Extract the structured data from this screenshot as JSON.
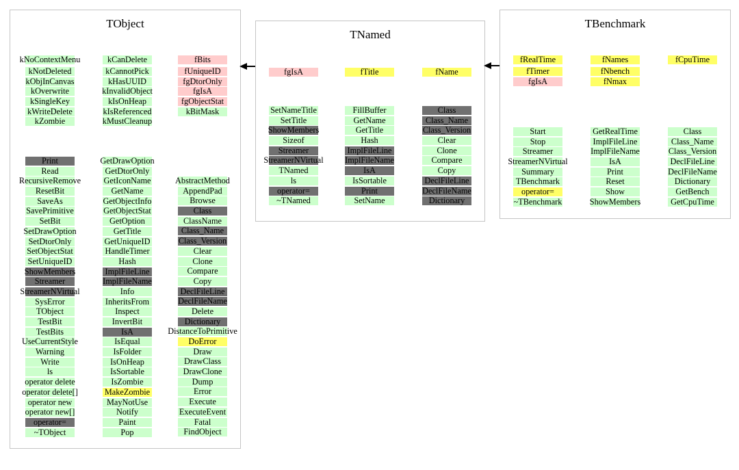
{
  "palette": {
    "green": "#ccffcc",
    "gray": "#707070",
    "yellow": "#ffff66",
    "pink": "#ffcccc",
    "border": "#c4c4c4",
    "arrow": "#000000"
  },
  "relations": [
    {
      "from": "TNamed",
      "to": "TObject",
      "type": "inherits"
    },
    {
      "from": "TBenchmark",
      "to": "TNamed",
      "type": "inherits"
    }
  ],
  "classes": [
    {
      "name": "TObject",
      "member_columns": [
        [
          {
            "t": "kNoContextMenu",
            "c": "green"
          },
          {
            "t": "kNotDeleted",
            "c": "green"
          },
          {
            "t": "kObjInCanvas",
            "c": "green"
          },
          {
            "t": "kOverwrite",
            "c": "green"
          },
          {
            "t": "kSingleKey",
            "c": "green"
          },
          {
            "t": "kWriteDelete",
            "c": "green"
          },
          {
            "t": "kZombie",
            "c": "green"
          }
        ],
        [
          {
            "t": "kCanDelete",
            "c": "green"
          },
          {
            "t": "kCannotPick",
            "c": "green"
          },
          {
            "t": "kHasUUID",
            "c": "green"
          },
          {
            "t": "kInvalidObject",
            "c": "green"
          },
          {
            "t": "kIsOnHeap",
            "c": "green"
          },
          {
            "t": "kIsReferenced",
            "c": "green"
          },
          {
            "t": "kMustCleanup",
            "c": "green"
          }
        ],
        [
          {
            "t": "fBits",
            "c": "pink"
          },
          {
            "t": "fUniqueID",
            "c": "pink"
          },
          {
            "t": "fgDtorOnly",
            "c": "pink"
          },
          {
            "t": "fgIsA",
            "c": "pink"
          },
          {
            "t": "fgObjectStat",
            "c": "pink"
          },
          {
            "t": "kBitMask",
            "c": "green"
          }
        ]
      ],
      "method_columns": [
        [
          {
            "t": "Print",
            "c": "gray"
          },
          {
            "t": "Read",
            "c": "green"
          },
          {
            "t": "RecursiveRemove",
            "c": "green"
          },
          {
            "t": "ResetBit",
            "c": "green"
          },
          {
            "t": "SaveAs",
            "c": "green"
          },
          {
            "t": "SavePrimitive",
            "c": "green"
          },
          {
            "t": "SetBit",
            "c": "green"
          },
          {
            "t": "SetDrawOption",
            "c": "green"
          },
          {
            "t": "SetDtorOnly",
            "c": "green"
          },
          {
            "t": "SetObjectStat",
            "c": "green"
          },
          {
            "t": "SetUniqueID",
            "c": "green"
          },
          {
            "t": "ShowMembers",
            "c": "gray"
          },
          {
            "t": "Streamer",
            "c": "gray"
          },
          {
            "t": "StreamerNVirtual",
            "c": "gray"
          },
          {
            "t": "SysError",
            "c": "green"
          },
          {
            "t": "TObject",
            "c": "green"
          },
          {
            "t": "TestBit",
            "c": "green"
          },
          {
            "t": "TestBits",
            "c": "green"
          },
          {
            "t": "UseCurrentStyle",
            "c": "green"
          },
          {
            "t": "Warning",
            "c": "green"
          },
          {
            "t": "Write",
            "c": "green"
          },
          {
            "t": "ls",
            "c": "green"
          },
          {
            "t": "operator delete",
            "c": "green"
          },
          {
            "t": "operator delete[]",
            "c": "green"
          },
          {
            "t": "operator new",
            "c": "green"
          },
          {
            "t": "operator new[]",
            "c": "green"
          },
          {
            "t": "operator=",
            "c": "gray"
          },
          {
            "t": "~TObject",
            "c": "green"
          }
        ],
        [
          {
            "t": "GetDrawOption",
            "c": "green"
          },
          {
            "t": "GetDtorOnly",
            "c": "green"
          },
          {
            "t": "GetIconName",
            "c": "green"
          },
          {
            "t": "GetName",
            "c": "green"
          },
          {
            "t": "GetObjectInfo",
            "c": "green"
          },
          {
            "t": "GetObjectStat",
            "c": "green"
          },
          {
            "t": "GetOption",
            "c": "green"
          },
          {
            "t": "GetTitle",
            "c": "green"
          },
          {
            "t": "GetUniqueID",
            "c": "green"
          },
          {
            "t": "HandleTimer",
            "c": "green"
          },
          {
            "t": "Hash",
            "c": "green"
          },
          {
            "t": "ImplFileLine",
            "c": "gray"
          },
          {
            "t": "ImplFileName",
            "c": "gray"
          },
          {
            "t": "Info",
            "c": "green"
          },
          {
            "t": "InheritsFrom",
            "c": "green"
          },
          {
            "t": "Inspect",
            "c": "green"
          },
          {
            "t": "InvertBit",
            "c": "green"
          },
          {
            "t": "IsA",
            "c": "gray"
          },
          {
            "t": "IsEqual",
            "c": "green"
          },
          {
            "t": "IsFolder",
            "c": "green"
          },
          {
            "t": "IsOnHeap",
            "c": "green"
          },
          {
            "t": "IsSortable",
            "c": "green"
          },
          {
            "t": "IsZombie",
            "c": "green"
          },
          {
            "t": "MakeZombie",
            "c": "yellow"
          },
          {
            "t": "MayNotUse",
            "c": "green"
          },
          {
            "t": "Notify",
            "c": "green"
          },
          {
            "t": "Paint",
            "c": "green"
          },
          {
            "t": "Pop",
            "c": "green"
          }
        ],
        [
          {
            "t": "AbstractMethod",
            "c": "green"
          },
          {
            "t": "AppendPad",
            "c": "green"
          },
          {
            "t": "Browse",
            "c": "green"
          },
          {
            "t": "Class",
            "c": "gray"
          },
          {
            "t": "ClassName",
            "c": "green"
          },
          {
            "t": "Class_Name",
            "c": "gray"
          },
          {
            "t": "Class_Version",
            "c": "gray"
          },
          {
            "t": "Clear",
            "c": "green"
          },
          {
            "t": "Clone",
            "c": "green"
          },
          {
            "t": "Compare",
            "c": "green"
          },
          {
            "t": "Copy",
            "c": "green"
          },
          {
            "t": "DeclFileLine",
            "c": "gray"
          },
          {
            "t": "DeclFileName",
            "c": "gray"
          },
          {
            "t": "Delete",
            "c": "green"
          },
          {
            "t": "Dictionary",
            "c": "gray"
          },
          {
            "t": "DistanceToPrimitive",
            "c": "green"
          },
          {
            "t": "DoError",
            "c": "yellow"
          },
          {
            "t": "Draw",
            "c": "green"
          },
          {
            "t": "DrawClass",
            "c": "green"
          },
          {
            "t": "DrawClone",
            "c": "green"
          },
          {
            "t": "Dump",
            "c": "green"
          },
          {
            "t": "Error",
            "c": "green"
          },
          {
            "t": "Execute",
            "c": "green"
          },
          {
            "t": "ExecuteEvent",
            "c": "green"
          },
          {
            "t": "Fatal",
            "c": "green"
          },
          {
            "t": "FindObject",
            "c": "green"
          }
        ]
      ]
    },
    {
      "name": "TNamed",
      "member_columns": [
        [
          {
            "t": "fgIsA",
            "c": "pink"
          }
        ],
        [
          {
            "t": "fTitle",
            "c": "yellow"
          }
        ],
        [
          {
            "t": "fName",
            "c": "yellow"
          }
        ]
      ],
      "method_columns": [
        [
          {
            "t": "SetNameTitle",
            "c": "green"
          },
          {
            "t": "SetTitle",
            "c": "green"
          },
          {
            "t": "ShowMembers",
            "c": "gray"
          },
          {
            "t": "Sizeof",
            "c": "green"
          },
          {
            "t": "Streamer",
            "c": "gray"
          },
          {
            "t": "StreamerNVirtual",
            "c": "gray"
          },
          {
            "t": "TNamed",
            "c": "green"
          },
          {
            "t": "ls",
            "c": "green"
          },
          {
            "t": "operator=",
            "c": "gray"
          },
          {
            "t": "~TNamed",
            "c": "green"
          }
        ],
        [
          {
            "t": "FillBuffer",
            "c": "green"
          },
          {
            "t": "GetName",
            "c": "green"
          },
          {
            "t": "GetTitle",
            "c": "green"
          },
          {
            "t": "Hash",
            "c": "green"
          },
          {
            "t": "ImplFileLine",
            "c": "gray"
          },
          {
            "t": "ImplFileName",
            "c": "gray"
          },
          {
            "t": "IsA",
            "c": "gray"
          },
          {
            "t": "IsSortable",
            "c": "green"
          },
          {
            "t": "Print",
            "c": "gray"
          },
          {
            "t": "SetName",
            "c": "green"
          }
        ],
        [
          {
            "t": "Class",
            "c": "gray"
          },
          {
            "t": "Class_Name",
            "c": "gray"
          },
          {
            "t": "Class_Version",
            "c": "gray"
          },
          {
            "t": "Clear",
            "c": "green"
          },
          {
            "t": "Clone",
            "c": "green"
          },
          {
            "t": "Compare",
            "c": "green"
          },
          {
            "t": "Copy",
            "c": "green"
          },
          {
            "t": "DeclFileLine",
            "c": "gray"
          },
          {
            "t": "DeclFileName",
            "c": "gray"
          },
          {
            "t": "Dictionary",
            "c": "gray"
          }
        ]
      ]
    },
    {
      "name": "TBenchmark",
      "member_columns": [
        [
          {
            "t": "fRealTime",
            "c": "yellow"
          },
          {
            "t": "fTimer",
            "c": "yellow"
          },
          {
            "t": "fgIsA",
            "c": "pink"
          }
        ],
        [
          {
            "t": "fNames",
            "c": "yellow"
          },
          {
            "t": "fNbench",
            "c": "yellow"
          },
          {
            "t": "fNmax",
            "c": "yellow"
          }
        ],
        [
          {
            "t": "fCpuTime",
            "c": "yellow"
          }
        ]
      ],
      "method_columns": [
        [
          {
            "t": "Start",
            "c": "green"
          },
          {
            "t": "Stop",
            "c": "green"
          },
          {
            "t": "Streamer",
            "c": "green"
          },
          {
            "t": "StreamerNVirtual",
            "c": "green"
          },
          {
            "t": "Summary",
            "c": "green"
          },
          {
            "t": "TBenchmark",
            "c": "green"
          },
          {
            "t": "operator=",
            "c": "yellow"
          },
          {
            "t": "~TBenchmark",
            "c": "green"
          }
        ],
        [
          {
            "t": "GetRealTime",
            "c": "green"
          },
          {
            "t": "ImplFileLine",
            "c": "green"
          },
          {
            "t": "ImplFileName",
            "c": "green"
          },
          {
            "t": "IsA",
            "c": "green"
          },
          {
            "t": "Print",
            "c": "green"
          },
          {
            "t": "Reset",
            "c": "green"
          },
          {
            "t": "Show",
            "c": "green"
          },
          {
            "t": "ShowMembers",
            "c": "green"
          }
        ],
        [
          {
            "t": "Class",
            "c": "green"
          },
          {
            "t": "Class_Name",
            "c": "green"
          },
          {
            "t": "Class_Version",
            "c": "green"
          },
          {
            "t": "DeclFileLine",
            "c": "green"
          },
          {
            "t": "DeclFileName",
            "c": "green"
          },
          {
            "t": "Dictionary",
            "c": "green"
          },
          {
            "t": "GetBench",
            "c": "green"
          },
          {
            "t": "GetCpuTime",
            "c": "green"
          }
        ]
      ]
    }
  ]
}
